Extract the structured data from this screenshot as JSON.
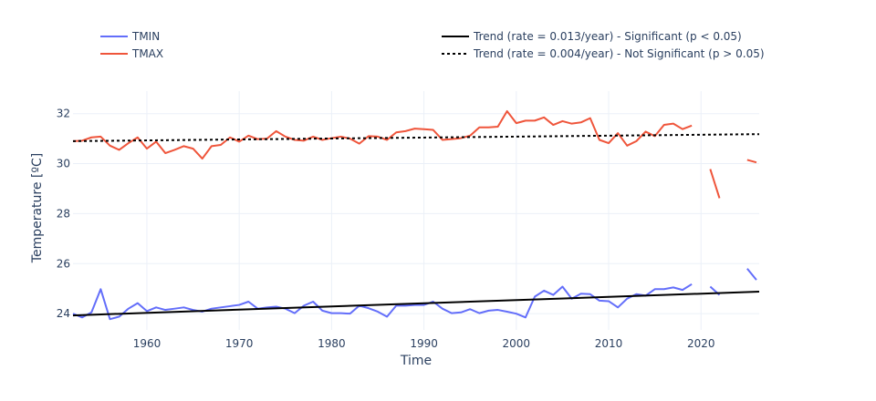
{
  "chart_data": {
    "type": "line",
    "xlabel": "Time",
    "ylabel": "Temperature [ºC]",
    "xlim": [
      1952,
      2026.3
    ],
    "ylim": [
      23.35,
      32.9
    ],
    "x_ticks": [
      1960,
      1970,
      1980,
      1990,
      2000,
      2010,
      2020
    ],
    "y_ticks": [
      24,
      26,
      28,
      30,
      32
    ],
    "grid": true,
    "legend": [
      {
        "name": "TMIN",
        "color": "#636efa",
        "dash": "solid"
      },
      {
        "name": "TMAX",
        "color": "#ef553b",
        "dash": "solid"
      },
      {
        "name": "Trend (rate = 0.013/year) - Significant (p < 0.05)",
        "color": "#000000",
        "dash": "solid"
      },
      {
        "name": "Trend (rate = 0.004/year) - Not Significant (p > 0.05)",
        "color": "#000000",
        "dash": "dot"
      }
    ],
    "series": [
      {
        "name": "TMIN",
        "color": "#636efa",
        "x": [
          1952,
          1953,
          1954,
          1955,
          1956,
          1957,
          1958,
          1959,
          1960,
          1961,
          1962,
          1963,
          1964,
          1965,
          1966,
          1967,
          1968,
          1969,
          1970,
          1971,
          1972,
          1973,
          1974,
          1975,
          1976,
          1977,
          1978,
          1979,
          1980,
          1981,
          1982,
          1983,
          1984,
          1985,
          1986,
          1987,
          1988,
          1989,
          1990,
          1991,
          1992,
          1993,
          1994,
          1995,
          1996,
          1997,
          1998,
          1999,
          2000,
          2001,
          2002,
          2003,
          2004,
          2005,
          2006,
          2007,
          2008,
          2009,
          2010,
          2011,
          2012,
          2013,
          2014,
          2015,
          2016,
          2017,
          2018,
          2019,
          2020,
          2021,
          2022,
          2023,
          2024,
          2025,
          2026
        ],
        "values": [
          24.0,
          23.85,
          24.05,
          24.98,
          23.78,
          23.88,
          24.2,
          24.42,
          24.1,
          24.25,
          24.15,
          24.2,
          24.25,
          24.15,
          24.08,
          24.2,
          24.25,
          24.3,
          24.35,
          24.48,
          24.2,
          24.25,
          24.28,
          24.2,
          24.02,
          24.32,
          24.48,
          24.12,
          24.02,
          24.02,
          24.0,
          24.32,
          24.22,
          24.08,
          23.88,
          24.32,
          24.32,
          24.35,
          24.35,
          24.48,
          24.2,
          24.02,
          24.05,
          24.18,
          24.02,
          24.12,
          24.15,
          24.08,
          24.0,
          23.85,
          24.68,
          24.92,
          24.75,
          25.08,
          24.6,
          24.8,
          24.78,
          24.52,
          24.5,
          24.25,
          24.6,
          24.78,
          24.72,
          24.98,
          24.98,
          25.05,
          24.95,
          25.18,
          null,
          25.08,
          24.75,
          null,
          null,
          25.8,
          25.35
        ]
      },
      {
        "name": "TMAX",
        "color": "#ef553b",
        "x": [
          1952,
          1953,
          1954,
          1955,
          1956,
          1957,
          1958,
          1959,
          1960,
          1961,
          1962,
          1963,
          1964,
          1965,
          1966,
          1967,
          1968,
          1969,
          1970,
          1971,
          1972,
          1973,
          1974,
          1975,
          1976,
          1977,
          1978,
          1979,
          1980,
          1981,
          1982,
          1983,
          1984,
          1985,
          1986,
          1987,
          1988,
          1989,
          1990,
          1991,
          1992,
          1993,
          1994,
          1995,
          1996,
          1997,
          1998,
          1999,
          2000,
          2001,
          2002,
          2003,
          2004,
          2005,
          2006,
          2007,
          2008,
          2009,
          2010,
          2011,
          2012,
          2013,
          2014,
          2015,
          2016,
          2017,
          2018,
          2019,
          2020,
          2021,
          2022,
          2023,
          2024,
          2025,
          2026
        ],
        "values": [
          30.9,
          30.92,
          31.05,
          31.08,
          30.72,
          30.55,
          30.82,
          31.05,
          30.6,
          30.88,
          30.42,
          30.55,
          30.7,
          30.6,
          30.2,
          30.7,
          30.75,
          31.05,
          30.88,
          31.12,
          30.98,
          31.0,
          31.3,
          31.08,
          30.95,
          30.92,
          31.08,
          30.95,
          31.02,
          31.08,
          31.0,
          30.8,
          31.1,
          31.08,
          30.95,
          31.25,
          31.3,
          31.4,
          31.38,
          31.35,
          30.95,
          30.98,
          31.02,
          31.12,
          31.45,
          31.45,
          31.48,
          32.1,
          31.62,
          31.72,
          31.72,
          31.85,
          31.55,
          31.7,
          31.6,
          31.65,
          31.82,
          30.95,
          30.82,
          31.22,
          30.72,
          30.9,
          31.28,
          31.1,
          31.55,
          31.6,
          31.38,
          31.52,
          null,
          29.78,
          28.62,
          null,
          null,
          30.15,
          30.05
        ]
      },
      {
        "name": "Trend (rate = 0.013/year) - Significant (p < 0.05)",
        "color": "#000000",
        "dash": "solid",
        "x": [
          1952,
          2026.3
        ],
        "values": [
          23.93,
          24.88
        ]
      },
      {
        "name": "Trend (rate = 0.004/year) - Not Significant (p > 0.05)",
        "color": "#000000",
        "dash": "dot",
        "x": [
          1952,
          2026.3
        ],
        "values": [
          30.9,
          31.18
        ]
      }
    ]
  }
}
